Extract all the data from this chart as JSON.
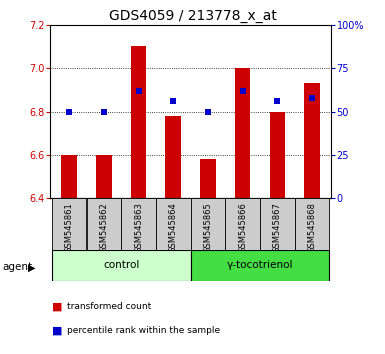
{
  "title": "GDS4059 / 213778_x_at",
  "samples": [
    "GSM545861",
    "GSM545862",
    "GSM545863",
    "GSM545864",
    "GSM545865",
    "GSM545866",
    "GSM545867",
    "GSM545868"
  ],
  "bar_values": [
    6.6,
    6.6,
    7.1,
    6.78,
    6.58,
    7.0,
    6.8,
    6.93
  ],
  "bar_base": 6.4,
  "percentile_values": [
    50,
    50,
    62,
    56,
    50,
    62,
    56,
    58
  ],
  "ylim_left": [
    6.4,
    7.2
  ],
  "ylim_right": [
    0,
    100
  ],
  "yticks_left": [
    6.4,
    6.6,
    6.8,
    7.0,
    7.2
  ],
  "yticks_right": [
    0,
    25,
    50,
    75,
    100
  ],
  "ytick_labels_right": [
    "0",
    "25",
    "50",
    "75",
    "100%"
  ],
  "grid_yticks": [
    6.6,
    6.8,
    7.0
  ],
  "bar_color": "#cc0000",
  "dot_color": "#0000cc",
  "control_label": "control",
  "treatment_label": "γ-tocotrienol",
  "agent_label": "agent",
  "legend_bar_label": "transformed count",
  "legend_dot_label": "percentile rank within the sample",
  "control_bg": "#ccffcc",
  "treatment_bg": "#44dd44",
  "sample_bg": "#cccccc",
  "plot_bg": "#ffffff",
  "title_fontsize": 10,
  "tick_fontsize": 7,
  "label_fontsize": 7.5,
  "sample_fontsize": 6,
  "bar_width": 0.45
}
